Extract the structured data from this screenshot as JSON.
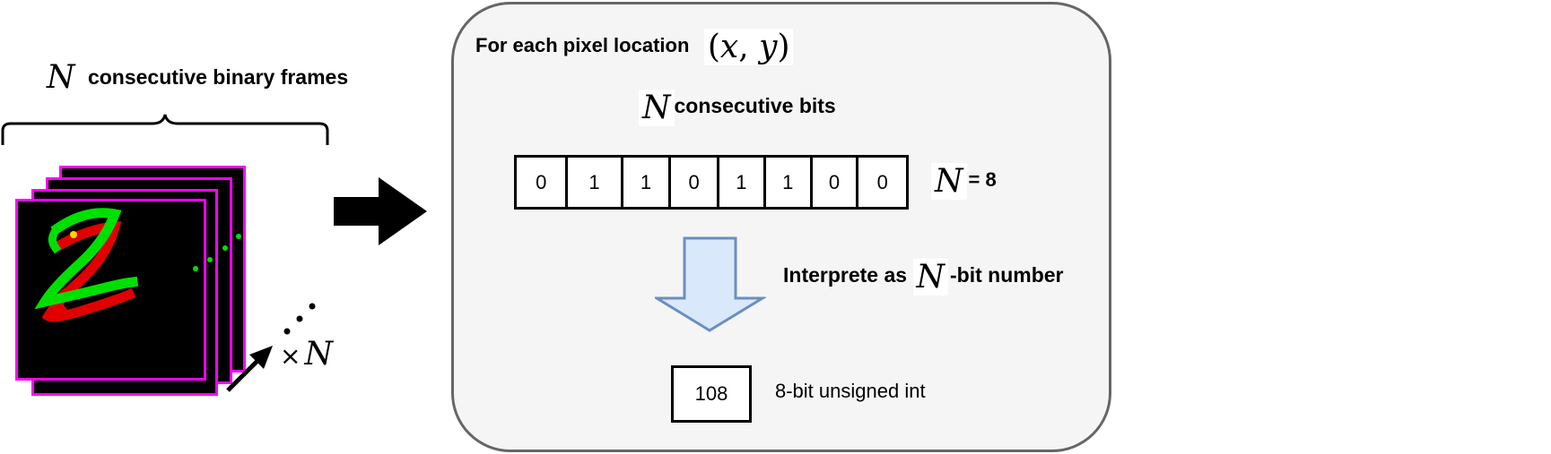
{
  "left": {
    "frames_symbol": "N",
    "frames_label": "consecutive binary frames",
    "multiplier_times": "×",
    "multiplier_symbol": "N"
  },
  "panel": {
    "heading": "For each pixel location",
    "heading_math_open": "(",
    "heading_math_x": "x",
    "heading_math_sep": ", ",
    "heading_math_y": "y",
    "heading_math_close": ")",
    "bits_symbol": "N",
    "bits_label": "consecutive bits",
    "bits": [
      "0",
      "1",
      "1",
      "0",
      "1",
      "1",
      "0",
      "0"
    ],
    "n_symbol": "N",
    "n_value": "= 8",
    "interpret_before": "Interprete as",
    "interpret_symbol": "N",
    "interpret_after": "-bit number",
    "result_value": "108",
    "result_label": "8-bit unsigned int"
  },
  "colors": {
    "frame_border": "#ff00ff",
    "digit_green": "#00e000",
    "digit_red": "#e00000",
    "digit_yellow": "#ffd400",
    "panel_fill": "#f5f5f5",
    "panel_border": "#666666",
    "down_arrow_fill": "#dae8fc",
    "down_arrow_stroke": "#6c8ebf"
  }
}
